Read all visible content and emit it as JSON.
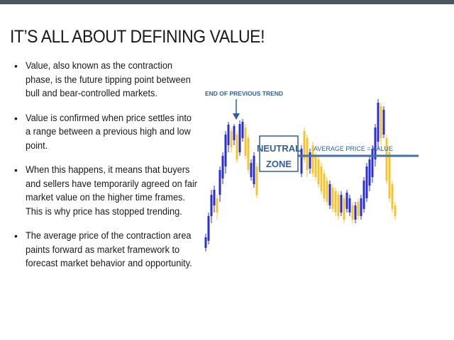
{
  "slide": {
    "title": "IT’S ALL ABOUT DEFINING VALUE!",
    "bullets": [
      "Value, also known as the contraction phase, is the future tipping point between bull and bear-controlled markets.",
      "Value is confirmed when price settles into a range between a previous high and low point.",
      "When this happens, it means that buyers and sellers have temporarily agreed on fair market value on the higher time frames. This is why price has stopped trending.",
      "The average price of the contraction area paints forward as market framework to forecast market behavior and opportunity."
    ]
  },
  "chart": {
    "annotation_trend": "END OF PREVIOUS TREND",
    "neutral_line1": "NEUTRAL",
    "neutral_line2": "ZONE",
    "avg_price_label": "AVERAGE PRICE = VALUE",
    "colors": {
      "bull": "#2b2fd1",
      "bear": "#f4c430",
      "accent": "#2e5f9e",
      "line": "#4a6fa5"
    }
  }
}
